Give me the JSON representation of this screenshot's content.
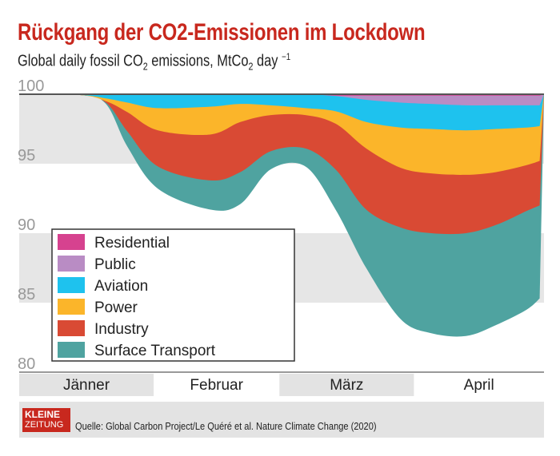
{
  "header": {
    "title": "Rückgang der CO2-Emissionen im Lockdown",
    "subtitle_pre": "Global daily fossil CO",
    "subtitle_sub1": "2",
    "subtitle_mid": " emissions, MtCo",
    "subtitle_sub2": "2",
    "subtitle_post": " day ",
    "subtitle_sup": "−1"
  },
  "footer": {
    "logo_line1": "KLEINE",
    "logo_line2": "ZEITUNG",
    "source": "Quelle: Global Carbon Project/Le Quéré et al. Nature Climate Change (2020)"
  },
  "chart_data": {
    "type": "area",
    "stacked": "downward from 100",
    "title": "Rückgang der CO2-Emissionen im Lockdown",
    "ylabel": "Global daily fossil CO2 emissions, MtCo2 day −1",
    "ylim": [
      80,
      100
    ],
    "yticks": [
      "100",
      "95",
      "90",
      "85",
      "80"
    ],
    "months": [
      "Jänner",
      "Februar",
      "März",
      "April"
    ],
    "x": [
      "2020-01-01",
      "2020-01-15",
      "2020-01-21",
      "2020-01-26",
      "2020-02-02",
      "2020-02-14",
      "2020-02-21",
      "2020-02-28",
      "2020-03-07",
      "2020-03-14",
      "2020-03-21",
      "2020-03-29",
      "2020-04-05",
      "2020-04-13",
      "2020-04-20",
      "2020-04-27",
      "2020-04-30"
    ],
    "legend_position": "bottom-left",
    "series": [
      {
        "name": "Residential",
        "color": "#d6428f",
        "values": [
          0,
          0,
          0,
          0,
          0,
          0,
          0,
          0,
          0,
          0.1,
          0.1,
          0.1,
          0.1,
          0.1,
          0.1,
          0.1,
          0.1
        ]
      },
      {
        "name": "Public",
        "color": "#b98cc4",
        "values": [
          0,
          0,
          0,
          0,
          0,
          0,
          0,
          0,
          0,
          0.03,
          0.3,
          0.5,
          0.6,
          0.7,
          0.7,
          0.7,
          0.7
        ]
      },
      {
        "name": "Aviation",
        "color": "#1ec2ee",
        "values": [
          0,
          0.06,
          0.3,
          0.6,
          1.0,
          0.9,
          0.7,
          0.8,
          1.0,
          1.1,
          1.6,
          1.8,
          1.8,
          1.8,
          1.7,
          1.6,
          1.5
        ]
      },
      {
        "name": "Power",
        "color": "#fbb52a",
        "values": [
          0,
          0,
          0.2,
          0.7,
          1.6,
          2.0,
          1.3,
          0.7,
          0.5,
          0.9,
          1.9,
          2.9,
          3.2,
          3.2,
          3.1,
          2.7,
          2.5
        ]
      },
      {
        "name": "Industry",
        "color": "#d94a34",
        "values": [
          0,
          0,
          0.1,
          1.4,
          2.6,
          3.3,
          3.6,
          2.6,
          2.4,
          3.3,
          4.4,
          4.3,
          4.3,
          4.2,
          3.8,
          3.3,
          3.2
        ]
      },
      {
        "name": "Surface Transport",
        "color": "#4fa3a0",
        "values": [
          0,
          0,
          0.1,
          1.1,
          1.6,
          2.1,
          2.3,
          1.3,
          1.3,
          2.9,
          4.2,
          6.6,
          7.2,
          7.4,
          7.2,
          7.1,
          6.7
        ]
      }
    ]
  }
}
